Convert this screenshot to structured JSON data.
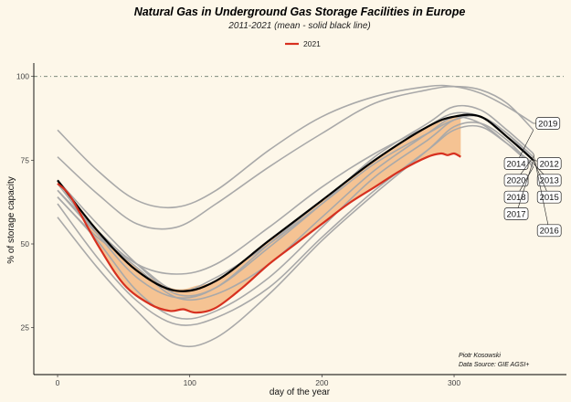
{
  "chart_data": {
    "type": "line",
    "title": "Natural Gas in Underground Gas Storage Facilities in Europe",
    "subtitle": "2011-2021 (mean -  solid black line)",
    "xlabel": "day of the year",
    "ylabel": "% of storage capacity",
    "xlim": [
      -18,
      385
    ],
    "ylim": [
      11,
      104
    ],
    "xticks": [
      0,
      100,
      200,
      300
    ],
    "yticks": [
      25,
      50,
      75,
      100
    ],
    "reference_line": 100,
    "legend": {
      "position": "top-center",
      "entries": [
        "2021"
      ]
    },
    "caption": [
      "Piotr Kosowski",
      "Data Source: GIE AGSI+"
    ],
    "colors": {
      "background": "#fdf7e9",
      "year_2021": "#d7301f",
      "band": "#f4c08e",
      "mean": "#000000",
      "years": "#a9a9a9"
    },
    "series": [
      {
        "name": "2011",
        "x": [
          0,
          30,
          60,
          90,
          120,
          160,
          200,
          240,
          280,
          300,
          320,
          340,
          360
        ],
        "y": [
          66,
          54,
          44,
          41,
          44,
          55,
          67,
          77,
          85,
          88,
          86,
          80,
          73
        ]
      },
      {
        "name": "2012",
        "x": [
          0,
          30,
          60,
          90,
          120,
          160,
          200,
          240,
          280,
          300,
          320,
          340,
          360
        ],
        "y": [
          68,
          53,
          40,
          34,
          37,
          50,
          63,
          75,
          85,
          89,
          88,
          83,
          75
        ]
      },
      {
        "name": "2013",
        "x": [
          0,
          30,
          60,
          90,
          120,
          160,
          200,
          240,
          280,
          300,
          320,
          340,
          360
        ],
        "y": [
          62,
          46,
          33,
          26,
          28,
          37,
          52,
          66,
          78,
          84,
          85,
          80,
          74
        ]
      },
      {
        "name": "2014",
        "x": [
          0,
          30,
          60,
          90,
          120,
          160,
          200,
          240,
          280,
          300,
          320,
          340,
          360
        ],
        "y": [
          76,
          65,
          56,
          55,
          62,
          73,
          83,
          92,
          96,
          97,
          96,
          92,
          84
        ]
      },
      {
        "name": "2015",
        "x": [
          0,
          30,
          60,
          90,
          120,
          160,
          200,
          240,
          280,
          300,
          320,
          340,
          360
        ],
        "y": [
          64,
          52,
          44,
          36,
          40,
          50,
          62,
          74,
          83,
          87,
          88,
          82,
          75
        ]
      },
      {
        "name": "2016",
        "x": [
          0,
          30,
          60,
          90,
          120,
          160,
          200,
          240,
          280,
          300,
          320,
          340,
          360
        ],
        "y": [
          69,
          56,
          44,
          35,
          37,
          49,
          62,
          76,
          86,
          91,
          90,
          84,
          77
        ]
      },
      {
        "name": "2017",
        "x": [
          0,
          30,
          60,
          90,
          120,
          160,
          200,
          240,
          280,
          300,
          320,
          340,
          360
        ],
        "y": [
          64,
          51,
          36,
          28,
          30,
          40,
          55,
          70,
          81,
          87,
          88,
          83,
          75
        ]
      },
      {
        "name": "2018",
        "x": [
          0,
          30,
          60,
          90,
          120,
          160,
          200,
          240,
          280,
          300,
          320,
          340,
          360
        ],
        "y": [
          58,
          43,
          30,
          20,
          22,
          35,
          51,
          65,
          78,
          85,
          86,
          81,
          73
        ]
      },
      {
        "name": "2019",
        "x": [
          0,
          30,
          60,
          90,
          120,
          160,
          200,
          240,
          280,
          300,
          320,
          340,
          360
        ],
        "y": [
          84,
          72,
          63,
          61,
          66,
          78,
          88,
          94,
          97,
          97,
          95,
          91,
          86
        ]
      },
      {
        "name": "2020",
        "x": [
          0,
          30,
          60,
          90,
          120,
          160,
          200,
          240,
          280,
          300,
          320,
          340,
          360
        ],
        "y": [
          66,
          53,
          43,
          34,
          35,
          44,
          58,
          72,
          83,
          88,
          88,
          83,
          76
        ]
      },
      {
        "name": "mean",
        "x": [
          0,
          30,
          60,
          90,
          120,
          160,
          200,
          240,
          280,
          300,
          320,
          340,
          360
        ],
        "y": [
          69,
          54,
          42,
          36,
          39,
          51,
          63,
          75,
          85,
          88,
          88,
          82,
          75
        ]
      },
      {
        "name": "2021",
        "x": [
          0,
          10,
          30,
          50,
          70,
          85,
          95,
          105,
          120,
          140,
          160,
          180,
          200,
          220,
          240,
          260,
          280,
          290,
          295,
          300,
          305
        ],
        "y": [
          68,
          64,
          50,
          38,
          32,
          30,
          30.5,
          29.5,
          31,
          37,
          44,
          50,
          56,
          62,
          67,
          72,
          76,
          77,
          76.5,
          77,
          76
        ]
      }
    ],
    "labels": [
      {
        "text": "2019",
        "x": 371,
        "y": 86
      },
      {
        "text": "2014",
        "x": 347,
        "y": 74
      },
      {
        "text": "2012",
        "x": 372,
        "y": 74
      },
      {
        "text": "2020",
        "x": 347,
        "y": 69
      },
      {
        "text": "2013",
        "x": 372,
        "y": 69
      },
      {
        "text": "2018",
        "x": 347,
        "y": 64
      },
      {
        "text": "2015",
        "x": 372,
        "y": 64
      },
      {
        "text": "2017",
        "x": 347,
        "y": 59
      },
      {
        "text": "2016",
        "x": 372,
        "y": 54
      }
    ]
  }
}
